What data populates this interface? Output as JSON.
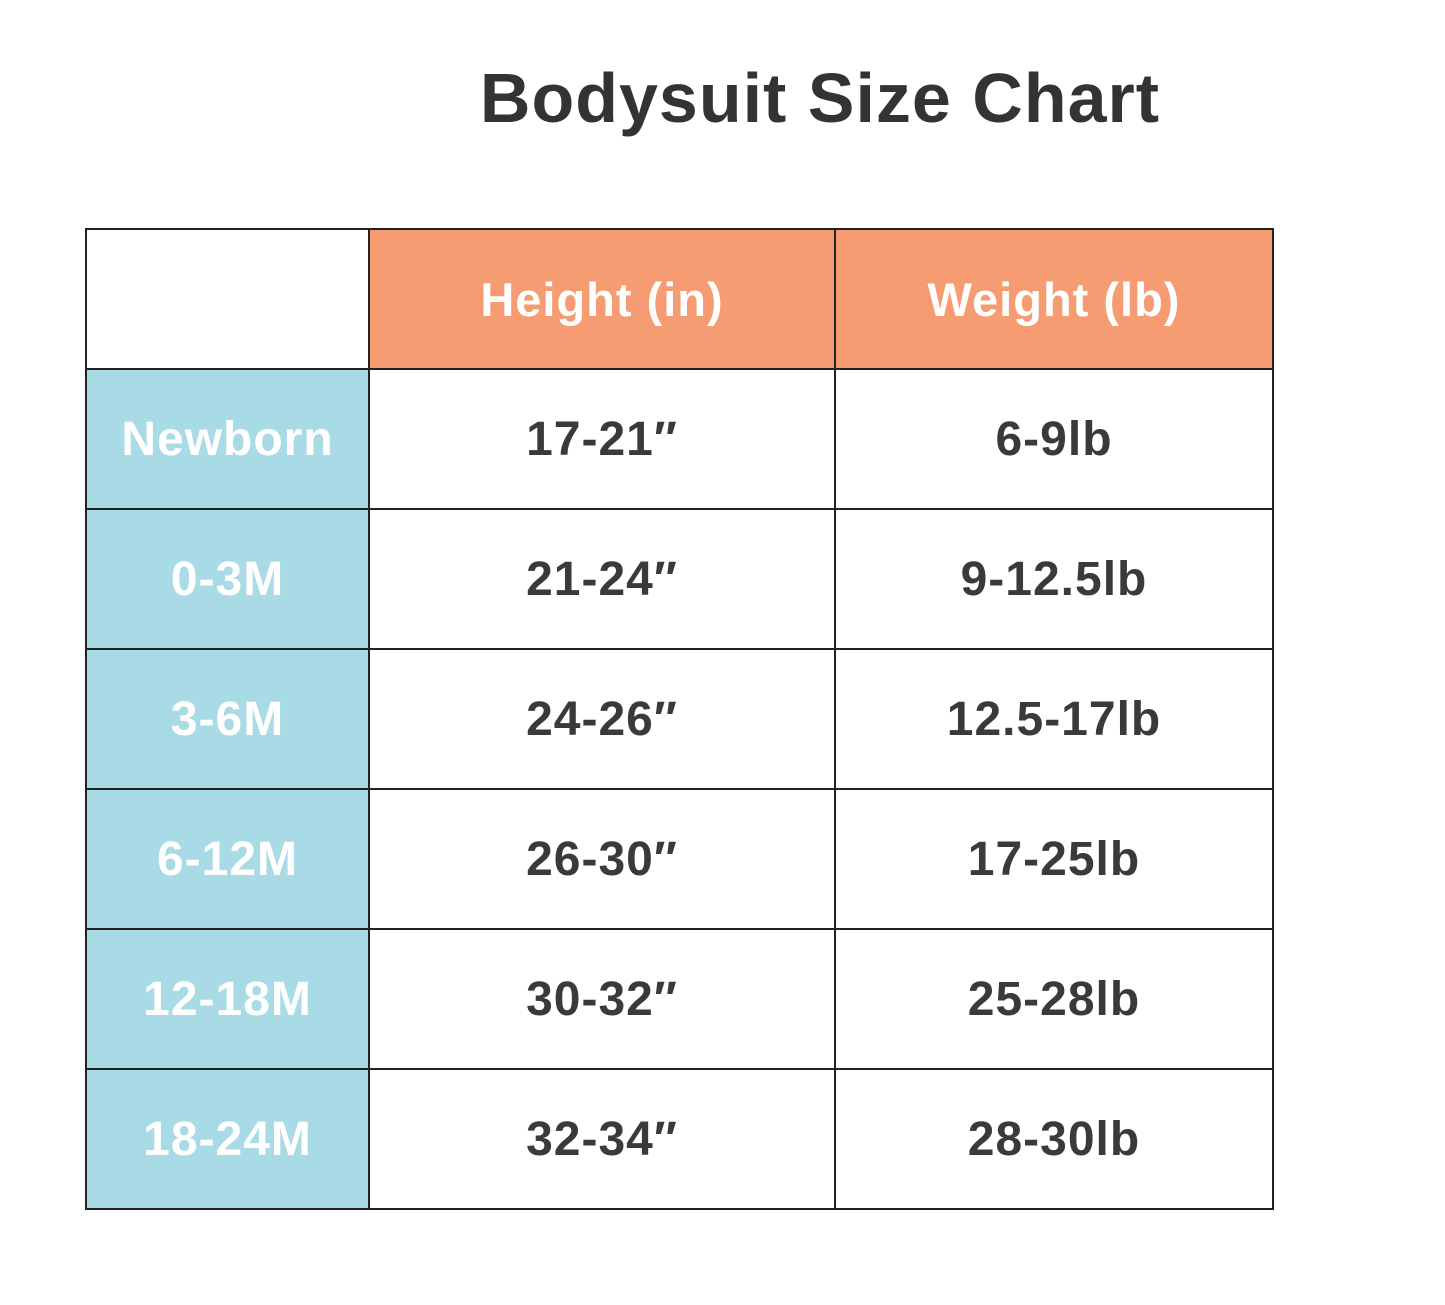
{
  "title": "Bodysuit Size Chart",
  "colors": {
    "background": "#ffffff",
    "title_text": "#333333",
    "header_bg": "#F59C73",
    "header_text": "#ffffff",
    "label_bg": "#A9DBE6",
    "label_text": "#ffffff",
    "cell_text": "#3A3A38",
    "border": "#222222"
  },
  "table": {
    "headers": [
      "Height (in)",
      "Weight (lb)"
    ],
    "rows": [
      {
        "size": "Newborn",
        "height_in": "17-21″",
        "weight_lb": "6-9lb"
      },
      {
        "size": "0-3M",
        "height_in": "21-24″",
        "weight_lb": "9-12.5lb"
      },
      {
        "size": "3-6M",
        "height_in": "24-26″",
        "weight_lb": "12.5-17lb"
      },
      {
        "size": "6-12M",
        "height_in": "26-30″",
        "weight_lb": "17-25lb"
      },
      {
        "size": "12-18M",
        "height_in": "30-32″",
        "weight_lb": "25-28lb"
      },
      {
        "size": "18-24M",
        "height_in": "32-34″",
        "weight_lb": "28-30lb"
      }
    ]
  },
  "chart_data": {
    "type": "table",
    "title": "Bodysuit Size Chart",
    "columns": [
      "",
      "Height (in)",
      "Weight (lb)"
    ],
    "rows": [
      [
        "Newborn",
        "17-21″",
        "6-9lb"
      ],
      [
        "0-3M",
        "21-24″",
        "9-12.5lb"
      ],
      [
        "3-6M",
        "24-26″",
        "12.5-17lb"
      ],
      [
        "6-12M",
        "26-30″",
        "17-25lb"
      ],
      [
        "12-18M",
        "30-32″",
        "25-28lb"
      ],
      [
        "18-24M",
        "32-34″",
        "28-30lb"
      ]
    ],
    "layout_hints": {
      "header_fill": "#F59C73",
      "row_label_fill": "#A9DBE6",
      "grid": true
    }
  }
}
